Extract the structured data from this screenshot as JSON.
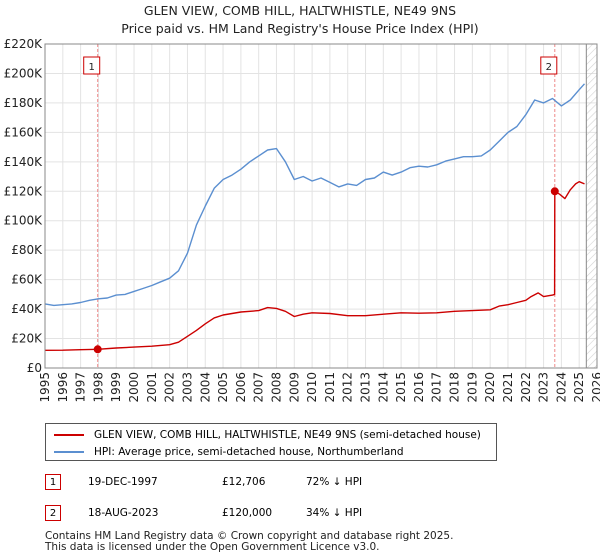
{
  "chart_data": {
    "type": "line",
    "title": "GLEN VIEW, COMB HILL, HALTWHISTLE, NE49 9NS",
    "subtitle": "Price paid vs. HM Land Registry's House Price Index (HPI)",
    "xlim": [
      1995,
      2026
    ],
    "ylim": [
      0,
      220000
    ],
    "yticks": [
      0,
      20000,
      40000,
      60000,
      80000,
      100000,
      120000,
      140000,
      160000,
      180000,
      200000,
      220000
    ],
    "ytick_labels": [
      "£0",
      "£20K",
      "£40K",
      "£60K",
      "£80K",
      "£100K",
      "£120K",
      "£140K",
      "£160K",
      "£180K",
      "£200K",
      "£220K"
    ],
    "xticks": [
      1995,
      1996,
      1997,
      1998,
      1999,
      2000,
      2001,
      2002,
      2003,
      2004,
      2005,
      2006,
      2007,
      2008,
      2009,
      2010,
      2011,
      2012,
      2013,
      2014,
      2015,
      2016,
      2017,
      2018,
      2019,
      2020,
      2021,
      2022,
      2023,
      2024,
      2025,
      2026
    ],
    "xtick_labels": [
      "1995",
      "1996",
      "1997",
      "1998",
      "1999",
      "2000",
      "2001",
      "2002",
      "2003",
      "2004",
      "2005",
      "2006",
      "2007",
      "2008",
      "2009",
      "2010",
      "2011",
      "2012",
      "2013",
      "2014",
      "2015",
      "2016",
      "2017",
      "2018",
      "2019",
      "2020",
      "2021",
      "2022",
      "2023",
      "2024",
      "2025",
      "2026"
    ],
    "grid": true,
    "series": [
      {
        "name": "GLEN VIEW, COMB HILL, HALTWHISTLE, NE49 9NS (semi-detached house)",
        "color": "#cc0000",
        "x": [
          1995.0,
          1996.0,
          1997.0,
          1997.96,
          1999.0,
          2000.0,
          2001.0,
          2002.0,
          2002.5,
          2003.0,
          2003.5,
          2004.0,
          2004.5,
          2005.0,
          2006.0,
          2007.0,
          2007.5,
          2008.0,
          2008.5,
          2009.0,
          2009.5,
          2010.0,
          2011.0,
          2012.0,
          2013.0,
          2014.0,
          2015.0,
          2016.0,
          2017.0,
          2018.0,
          2019.0,
          2020.0,
          2020.5,
          2021.0,
          2021.5,
          2022.0,
          2022.3,
          2022.7,
          2023.0,
          2023.5,
          2023.62,
          2023.63,
          2023.9,
          2024.2,
          2024.5,
          2024.8,
          2025.0,
          2025.3
        ],
        "y": [
          12000,
          12100,
          12400,
          12706,
          13600,
          14200,
          14800,
          15800,
          17500,
          21500,
          25500,
          30000,
          34000,
          36000,
          38000,
          39000,
          41000,
          40500,
          38500,
          35000,
          36500,
          37500,
          37000,
          35500,
          35500,
          36500,
          37500,
          37200,
          37500,
          38500,
          39000,
          39500,
          42000,
          43000,
          44500,
          46000,
          48500,
          51000,
          48500,
          49500,
          50000,
          120000,
          118000,
          115000,
          121000,
          125000,
          126500,
          125000
        ]
      },
      {
        "name": "HPI: Average price, semi-detached house, Northumberland",
        "color": "#5b8fd0",
        "x": [
          1995.0,
          1995.5,
          1996.0,
          1996.5,
          1997.0,
          1997.5,
          1998.0,
          1998.5,
          1999.0,
          1999.5,
          2000.0,
          2000.5,
          2001.0,
          2001.5,
          2002.0,
          2002.5,
          2003.0,
          2003.5,
          2004.0,
          2004.5,
          2005.0,
          2005.5,
          2006.0,
          2006.5,
          2007.0,
          2007.5,
          2008.0,
          2008.5,
          2009.0,
          2009.5,
          2010.0,
          2010.5,
          2011.0,
          2011.5,
          2012.0,
          2012.5,
          2013.0,
          2013.5,
          2014.0,
          2014.5,
          2015.0,
          2015.5,
          2016.0,
          2016.5,
          2017.0,
          2017.5,
          2018.0,
          2018.5,
          2019.0,
          2019.5,
          2020.0,
          2020.5,
          2021.0,
          2021.5,
          2022.0,
          2022.5,
          2023.0,
          2023.5,
          2024.0,
          2024.5,
          2025.0,
          2025.3
        ],
        "y": [
          43500,
          42500,
          43000,
          43500,
          44500,
          46000,
          47000,
          47500,
          49500,
          50000,
          52000,
          54000,
          56000,
          58500,
          61000,
          66000,
          78000,
          97000,
          110000,
          122000,
          128000,
          131000,
          135000,
          140000,
          144000,
          148000,
          149000,
          140000,
          128000,
          130000,
          127000,
          129000,
          126000,
          123000,
          125000,
          124000,
          128000,
          129000,
          133000,
          131000,
          133000,
          136000,
          137000,
          136500,
          138000,
          140500,
          142000,
          143500,
          143500,
          144000,
          148000,
          154000,
          160000,
          164000,
          172000,
          182000,
          180000,
          183000,
          178000,
          182000,
          189000,
          193000
        ]
      }
    ],
    "annotations": [
      {
        "label": "1",
        "x": 1997.96,
        "y": 12706
      },
      {
        "label": "2",
        "x": 2023.63,
        "y": 120000
      }
    ]
  },
  "legend": {
    "property_label": "GLEN VIEW, COMB HILL, HALTWHISTLE, NE49 9NS (semi-detached house)",
    "hpi_label": "HPI: Average price, semi-detached house, Northumberland"
  },
  "sales": [
    {
      "marker": "1",
      "date": "19-DEC-1997",
      "price": "£12,706",
      "delta": "72% ↓ HPI"
    },
    {
      "marker": "2",
      "date": "18-AUG-2023",
      "price": "£120,000",
      "delta": "34% ↓ HPI"
    }
  ],
  "footer": {
    "line1": "Contains HM Land Registry data © Crown copyright and database right 2025.",
    "line2": "This data is licensed under the Open Government Licence v3.0."
  },
  "colors": {
    "property_line": "#cc0000",
    "hpi_line": "#5b8fd0",
    "grid": "#e3e3e3",
    "marker_border": "#cc0000",
    "future_hatch": "#cfcfcf",
    "vline": "#ee8888"
  }
}
